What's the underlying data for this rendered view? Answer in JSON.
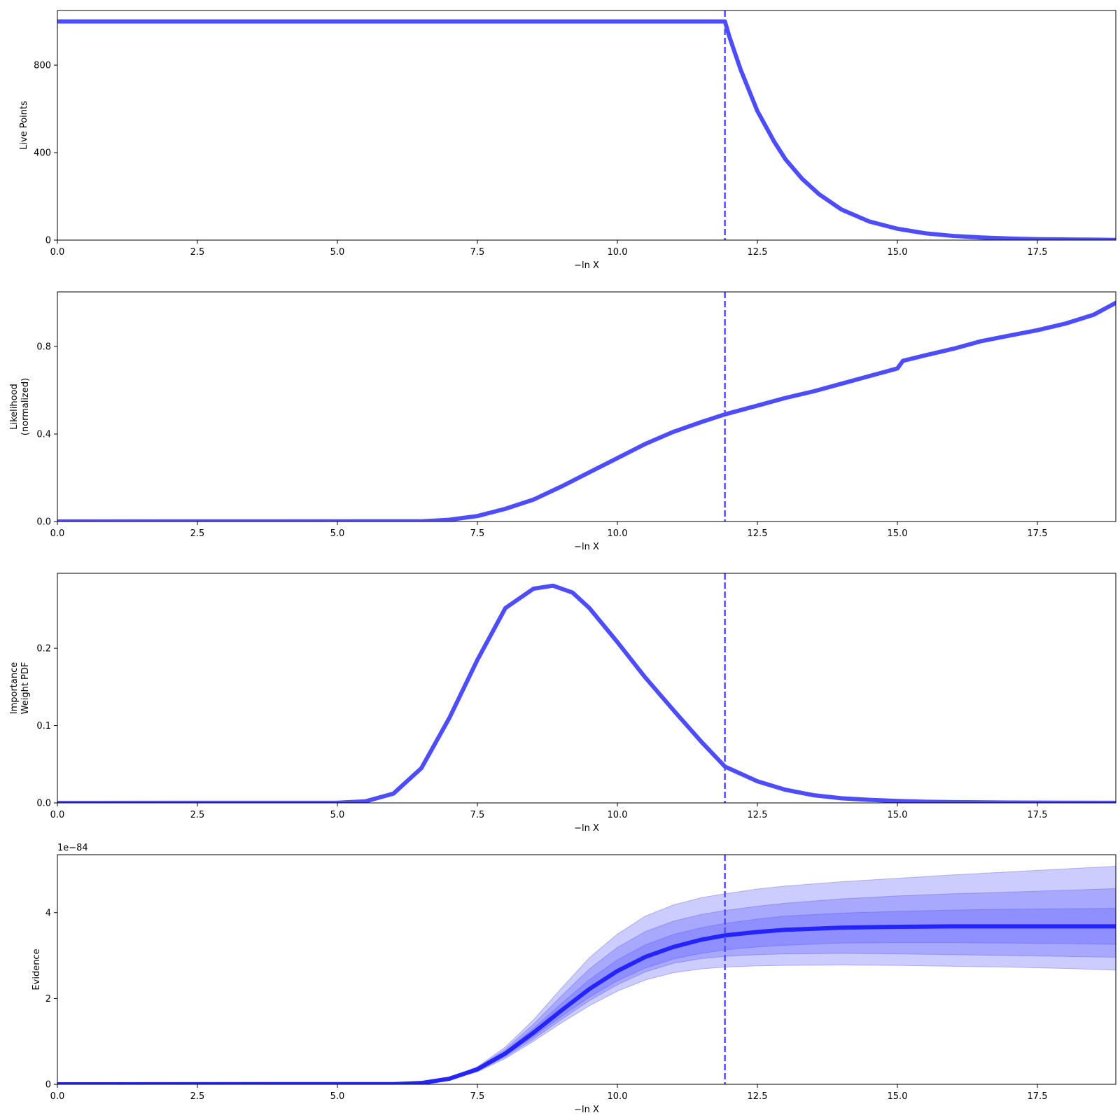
{
  "figure": {
    "background": "#ffffff"
  },
  "colors": {
    "line": "#4d4dff",
    "evidence_line": "#2424ff",
    "band_fill": "#5757ff",
    "axes": "#000000"
  },
  "chart_data": [
    {
      "type": "line",
      "xlabel": "−ln X",
      "ylabel": [
        "Live Points"
      ],
      "xlim": [
        0,
        18.9
      ],
      "ylim": [
        0,
        1050
      ],
      "xticks": [
        0,
        2.5,
        5,
        7.5,
        10,
        12.5,
        15,
        17.5
      ],
      "xtick_labels": [
        "0.0",
        "2.5",
        "5.0",
        "7.5",
        "10.0",
        "12.5",
        "15.0",
        "17.5"
      ],
      "yticks": [
        0,
        400,
        800
      ],
      "ytick_labels": [
        "0",
        "400",
        "800"
      ],
      "vline_x": 11.92,
      "series": [
        {
          "x": [
            0,
            11.92,
            12.0,
            12.2,
            12.5,
            12.8,
            13.0,
            13.3,
            13.6,
            14.0,
            14.5,
            15.0,
            15.5,
            16.0,
            16.5,
            17.0,
            17.5,
            18.0,
            18.5,
            18.9
          ],
          "y": [
            1000,
            1000,
            930,
            780,
            590,
            450,
            370,
            280,
            210,
            140,
            85,
            52,
            31,
            19,
            12,
            7,
            4,
            3,
            2,
            1
          ]
        }
      ]
    },
    {
      "type": "line",
      "xlabel": "−ln X",
      "ylabel": [
        "Likelihood",
        "(normalized)"
      ],
      "xlim": [
        0,
        18.9
      ],
      "ylim": [
        0,
        1.05
      ],
      "xticks": [
        0,
        2.5,
        5,
        7.5,
        10,
        12.5,
        15,
        17.5
      ],
      "xtick_labels": [
        "0.0",
        "2.5",
        "5.0",
        "7.5",
        "10.0",
        "12.5",
        "15.0",
        "17.5"
      ],
      "yticks": [
        0,
        0.4,
        0.8
      ],
      "ytick_labels": [
        "0.0",
        "0.4",
        "0.8"
      ],
      "vline_x": 11.92,
      "series": [
        {
          "x": [
            0,
            6.5,
            7.0,
            7.5,
            8.0,
            8.5,
            9.0,
            9.5,
            10.0,
            10.5,
            11.0,
            11.5,
            11.92,
            12.5,
            13.0,
            13.5,
            14.0,
            14.5,
            15.0,
            15.1,
            15.5,
            16.0,
            16.5,
            17.0,
            17.5,
            18.0,
            18.5,
            18.9
          ],
          "y": [
            0,
            0.001,
            0.008,
            0.025,
            0.058,
            0.1,
            0.16,
            0.225,
            0.29,
            0.355,
            0.41,
            0.455,
            0.49,
            0.53,
            0.565,
            0.595,
            0.63,
            0.665,
            0.7,
            0.735,
            0.76,
            0.79,
            0.825,
            0.85,
            0.875,
            0.905,
            0.945,
            1.0
          ]
        }
      ]
    },
    {
      "type": "line",
      "xlabel": "−ln X",
      "ylabel": [
        "Importance",
        "Weight PDF"
      ],
      "xlim": [
        0,
        18.9
      ],
      "ylim": [
        0,
        0.297
      ],
      "xticks": [
        0,
        2.5,
        5,
        7.5,
        10,
        12.5,
        15,
        17.5
      ],
      "xtick_labels": [
        "0.0",
        "2.5",
        "5.0",
        "7.5",
        "10.0",
        "12.5",
        "15.0",
        "17.5"
      ],
      "yticks": [
        0,
        0.1,
        0.2
      ],
      "ytick_labels": [
        "0.0",
        "0.1",
        "0.2"
      ],
      "vline_x": 11.92,
      "series": [
        {
          "x": [
            0,
            5.0,
            5.5,
            6.0,
            6.5,
            7.0,
            7.5,
            8.0,
            8.5,
            8.85,
            9.2,
            9.5,
            10.0,
            10.5,
            11.0,
            11.5,
            11.92,
            12.5,
            13.0,
            13.5,
            14.0,
            14.5,
            15.0,
            15.5,
            16.0,
            17.0,
            18.0,
            18.9
          ],
          "y": [
            0,
            0.0002,
            0.002,
            0.012,
            0.045,
            0.11,
            0.185,
            0.252,
            0.277,
            0.281,
            0.272,
            0.252,
            0.208,
            0.162,
            0.12,
            0.079,
            0.047,
            0.028,
            0.017,
            0.01,
            0.006,
            0.004,
            0.0025,
            0.0015,
            0.001,
            0.0005,
            0.0002,
            0.0001
          ]
        }
      ]
    },
    {
      "type": "area",
      "xlabel": "−ln X",
      "ylabel": [
        "Evidence"
      ],
      "offset_label": "1e−84",
      "xlim": [
        0,
        18.9
      ],
      "ylim": [
        0,
        5.35
      ],
      "xticks": [
        0,
        2.5,
        5,
        7.5,
        10,
        12.5,
        15,
        17.5
      ],
      "xtick_labels": [
        "0.0",
        "2.5",
        "5.0",
        "7.5",
        "10.0",
        "12.5",
        "15.0",
        "17.5"
      ],
      "yticks": [
        0,
        2,
        4
      ],
      "ytick_labels": [
        "0",
        "2",
        "4"
      ],
      "vline_x": 11.92,
      "x": [
        0,
        6.0,
        6.5,
        7.0,
        7.5,
        8.0,
        8.5,
        9.0,
        9.5,
        10.0,
        10.5,
        11.0,
        11.5,
        11.92,
        12.5,
        13.0,
        14.0,
        15.0,
        16.0,
        17.0,
        18.0,
        18.9
      ],
      "median": [
        0,
        0.005,
        0.03,
        0.13,
        0.35,
        0.72,
        1.2,
        1.72,
        2.22,
        2.64,
        2.97,
        3.2,
        3.37,
        3.47,
        3.55,
        3.6,
        3.65,
        3.67,
        3.68,
        3.68,
        3.68,
        3.68
      ],
      "bands": [
        {
          "name": "3sigma",
          "upper": [
            0,
            0.005,
            0.035,
            0.15,
            0.41,
            0.87,
            1.5,
            2.24,
            2.95,
            3.5,
            3.92,
            4.18,
            4.35,
            4.44,
            4.55,
            4.62,
            4.72,
            4.8,
            4.88,
            4.95,
            5.02,
            5.08
          ],
          "lower": [
            0,
            0.004,
            0.025,
            0.11,
            0.29,
            0.6,
            1.0,
            1.43,
            1.83,
            2.17,
            2.43,
            2.6,
            2.69,
            2.73,
            2.76,
            2.77,
            2.78,
            2.77,
            2.75,
            2.73,
            2.7,
            2.66
          ]
        },
        {
          "name": "2sigma",
          "upper": [
            0,
            0.005,
            0.033,
            0.14,
            0.39,
            0.82,
            1.4,
            2.06,
            2.69,
            3.19,
            3.56,
            3.8,
            3.96,
            4.05,
            4.15,
            4.22,
            4.32,
            4.39,
            4.44,
            4.48,
            4.52,
            4.56
          ],
          "lower": [
            0,
            0.004,
            0.027,
            0.12,
            0.31,
            0.64,
            1.05,
            1.51,
            1.95,
            2.32,
            2.62,
            2.82,
            2.93,
            2.98,
            3.02,
            3.04,
            3.05,
            3.04,
            3.02,
            3.0,
            2.98,
            2.96
          ]
        },
        {
          "name": "1sigma",
          "upper": [
            0,
            0.005,
            0.032,
            0.135,
            0.37,
            0.77,
            1.3,
            1.88,
            2.44,
            2.9,
            3.25,
            3.49,
            3.65,
            3.75,
            3.85,
            3.92,
            3.99,
            4.03,
            4.06,
            4.08,
            4.09,
            4.1
          ],
          "lower": [
            0,
            0.004,
            0.028,
            0.125,
            0.33,
            0.67,
            1.11,
            1.58,
            2.03,
            2.41,
            2.71,
            2.92,
            3.05,
            3.13,
            3.2,
            3.24,
            3.29,
            3.3,
            3.3,
            3.29,
            3.28,
            3.26
          ]
        }
      ]
    }
  ]
}
